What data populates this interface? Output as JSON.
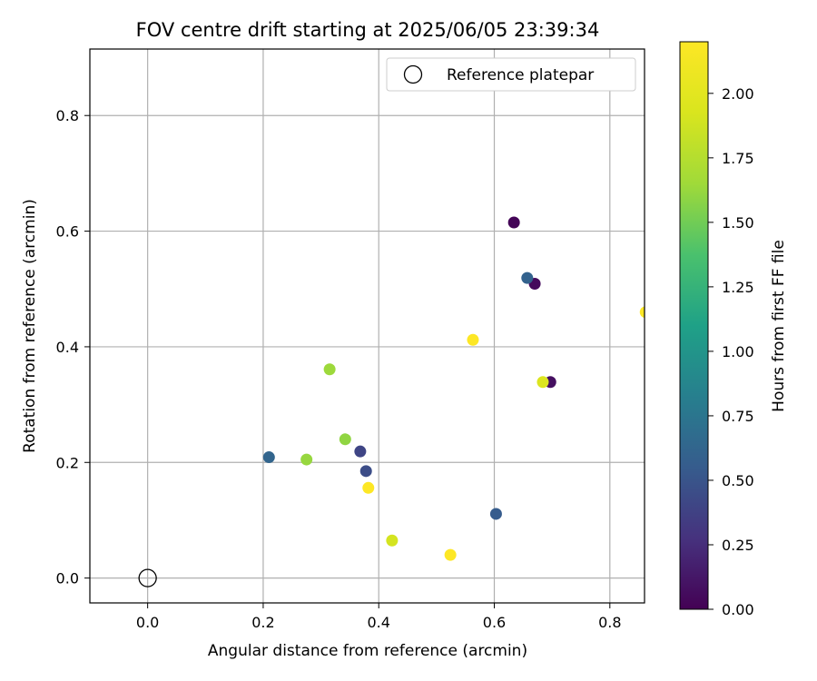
{
  "chart_data": {
    "type": "scatter",
    "title": "FOV centre drift starting at 2025/06/05 23:39:34",
    "xlabel": "Angular distance from reference (arcmin)",
    "ylabel": "Rotation from reference (arcmin)",
    "xlim": [
      -0.1,
      0.86
    ],
    "ylim": [
      -0.043,
      0.915
    ],
    "xticks": [
      "0.0",
      "0.2",
      "0.4",
      "0.6",
      "0.8"
    ],
    "yticks": [
      "0.0",
      "0.2",
      "0.4",
      "0.6",
      "0.8"
    ],
    "grid": true,
    "legend": {
      "position": "top-right",
      "entries": [
        "Reference platepar"
      ]
    },
    "reference_point": {
      "x": 0.0,
      "y": 0.0
    },
    "colorbar": {
      "label": "Hours from first FF file",
      "range": [
        0.0,
        2.2
      ],
      "ticks": [
        "0.00",
        "0.25",
        "0.50",
        "0.75",
        "1.00",
        "1.25",
        "1.50",
        "1.75",
        "2.00"
      ],
      "colormap": "viridis"
    },
    "points": [
      {
        "x": 0.634,
        "y": 0.615,
        "c": 0.02
      },
      {
        "x": 0.67,
        "y": 0.509,
        "c": 0.05
      },
      {
        "x": 0.697,
        "y": 0.339,
        "c": 0.08
      },
      {
        "x": 0.368,
        "y": 0.219,
        "c": 0.4
      },
      {
        "x": 0.378,
        "y": 0.185,
        "c": 0.45
      },
      {
        "x": 0.603,
        "y": 0.111,
        "c": 0.55
      },
      {
        "x": 0.657,
        "y": 0.519,
        "c": 0.6
      },
      {
        "x": 0.21,
        "y": 0.209,
        "c": 0.62
      },
      {
        "x": 0.342,
        "y": 0.24,
        "c": 1.6
      },
      {
        "x": 0.275,
        "y": 0.205,
        "c": 1.62
      },
      {
        "x": 0.315,
        "y": 0.361,
        "c": 1.64
      },
      {
        "x": 0.423,
        "y": 0.065,
        "c": 1.9
      },
      {
        "x": 0.684,
        "y": 0.339,
        "c": 1.95
      },
      {
        "x": 0.382,
        "y": 0.156,
        "c": 2.2
      },
      {
        "x": 0.524,
        "y": 0.04,
        "c": 2.2
      },
      {
        "x": 0.563,
        "y": 0.412,
        "c": 2.2
      },
      {
        "x": 0.862,
        "y": 0.46,
        "c": 2.2
      }
    ]
  }
}
